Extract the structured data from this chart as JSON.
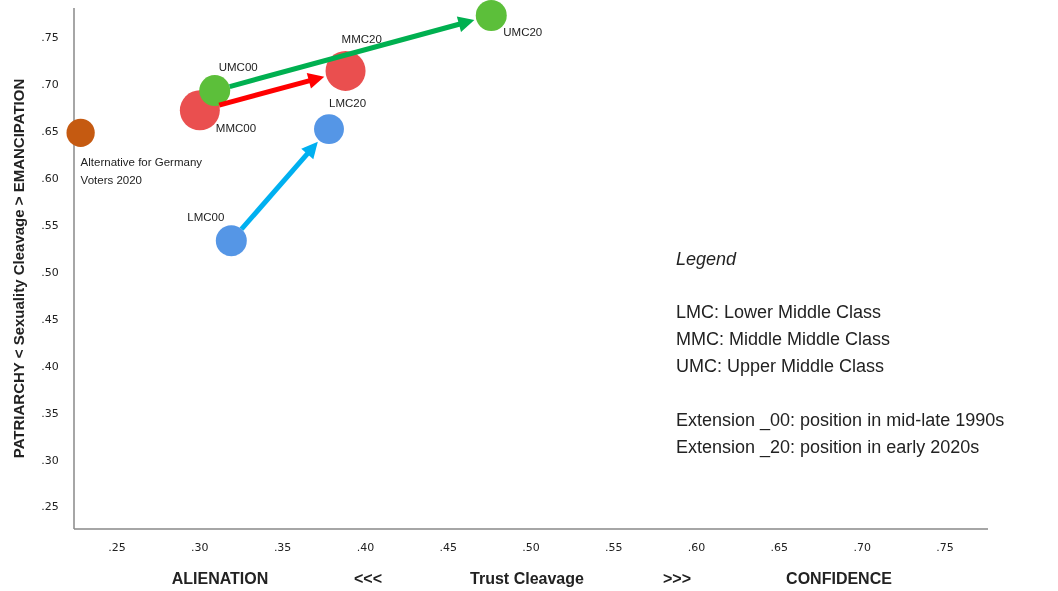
{
  "chart_data": {
    "type": "bubble",
    "xlabel": "ALIENATION   <<<   Trust Cleavage   >>>   CONFIDENCE",
    "ylabel": "PATRIARCHY < Sexuality Cleavage > EMANCIPATION",
    "xlim": [
      0.224,
      0.776
    ],
    "ylim": [
      0.226,
      0.781
    ],
    "xticks": [
      {
        "value": 0.25,
        "label": ".25"
      },
      {
        "value": 0.3,
        "label": ".30"
      },
      {
        "value": 0.35,
        "label": ".35"
      },
      {
        "value": 0.4,
        "label": ".40"
      },
      {
        "value": 0.45,
        "label": ".45"
      },
      {
        "value": 0.5,
        "label": ".50"
      },
      {
        "value": 0.55,
        "label": ".55"
      },
      {
        "value": 0.6,
        "label": ".60"
      },
      {
        "value": 0.65,
        "label": ".65"
      },
      {
        "value": 0.7,
        "label": ".70"
      },
      {
        "value": 0.75,
        "label": ".75"
      }
    ],
    "yticks": [
      {
        "value": 0.25,
        "label": ".25"
      },
      {
        "value": 0.3,
        "label": ".30"
      },
      {
        "value": 0.35,
        "label": ".35"
      },
      {
        "value": 0.4,
        "label": ".40"
      },
      {
        "value": 0.45,
        "label": ".45"
      },
      {
        "value": 0.5,
        "label": ".50"
      },
      {
        "value": 0.55,
        "label": ".55"
      },
      {
        "value": 0.6,
        "label": ".60"
      },
      {
        "value": 0.65,
        "label": ".65"
      },
      {
        "value": 0.7,
        "label": ".70"
      },
      {
        "value": 0.75,
        "label": ".75"
      }
    ],
    "series": [
      {
        "name": "Alternative for Germany Voters 2020",
        "color": "#c55a11",
        "x": [
          0.228
        ],
        "values": [
          0.648
        ],
        "sizes": [
          0.5
        ]
      },
      {
        "name": "MMC00",
        "color": "#ea4f4f",
        "x": [
          0.3
        ],
        "values": [
          0.672
        ],
        "sizes": [
          1
        ]
      },
      {
        "name": "UMC00",
        "color": "#5cbf3a",
        "x": [
          0.309
        ],
        "values": [
          0.693
        ],
        "sizes": [
          0.6
        ]
      },
      {
        "name": "LMC00",
        "color": "#5596e6",
        "x": [
          0.319
        ],
        "values": [
          0.533
        ],
        "sizes": [
          0.6
        ]
      },
      {
        "name": "LMC20",
        "color": "#5596e6",
        "x": [
          0.378
        ],
        "values": [
          0.652
        ],
        "sizes": [
          0.56
        ]
      },
      {
        "name": "MMC20",
        "color": "#ea4f4f",
        "x": [
          0.388
        ],
        "values": [
          0.714
        ],
        "sizes": [
          1
        ]
      },
      {
        "name": "UMC20",
        "color": "#5cbf3a",
        "x": [
          0.476
        ],
        "values": [
          0.773
        ],
        "sizes": [
          0.6
        ]
      }
    ],
    "annotations": [
      "Legend",
      "LMC: Lower Middle Class",
      "MMC: Middle Middle Class",
      "UMC: Upper Middle Class",
      "Extension _00: position in mid-late 1990s",
      "Extension _20: position in early 2020s"
    ]
  }
}
